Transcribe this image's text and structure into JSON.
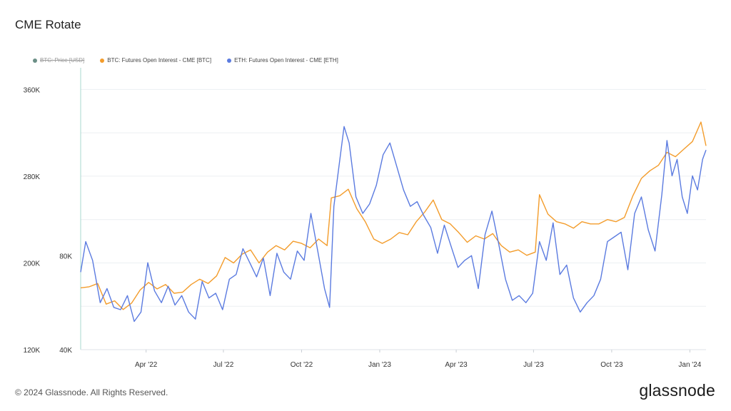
{
  "page": {
    "title": "CME Rotate",
    "footer": "© 2024 Glassnode. All Rights Reserved.",
    "brand": "glassnode"
  },
  "chart_data": {
    "type": "line",
    "legend": [
      {
        "name": "BTC: Price [USD]",
        "color": "#6b8f86",
        "hidden": true
      },
      {
        "name": "BTC: Futures Open Interest - CME [BTC]",
        "color": "#f39c2b",
        "hidden": false
      },
      {
        "name": "ETH: Futures Open Interest - CME [ETH]",
        "color": "#5b7be0",
        "hidden": false
      }
    ],
    "x_ticks": [
      {
        "date": "2022-04-01",
        "label": "Apr '22"
      },
      {
        "date": "2022-07-01",
        "label": "Jul '22"
      },
      {
        "date": "2022-10-01",
        "label": "Oct '22"
      },
      {
        "date": "2023-01-01",
        "label": "Jan '23"
      },
      {
        "date": "2023-04-01",
        "label": "Apr '23"
      },
      {
        "date": "2023-07-01",
        "label": "Jul '23"
      },
      {
        "date": "2023-10-01",
        "label": "Oct '23"
      },
      {
        "date": "2024-01-01",
        "label": "Jan '24"
      }
    ],
    "xlim": [
      "2022-01-14",
      "2024-01-20"
    ],
    "y_left": {
      "ticks": [
        120000,
        200000,
        280000,
        360000
      ],
      "labels": [
        "120K",
        "200K",
        "280K",
        "360K"
      ],
      "lim": [
        120000,
        380000
      ]
    },
    "y_right": {
      "ticks": [
        40000,
        80000
      ],
      "labels": [
        "40K",
        "80K"
      ],
      "lim": [
        40000,
        160000
      ]
    },
    "grid": true,
    "legend_position": "top-left",
    "series": [
      {
        "name": "BTC: Futures Open Interest - CME [BTC]",
        "color": "#f39c2b",
        "axis": "left",
        "points": [
          [
            "2022-01-14",
            177000
          ],
          [
            "2022-01-24",
            178000
          ],
          [
            "2022-02-03",
            181000
          ],
          [
            "2022-02-13",
            162000
          ],
          [
            "2022-02-23",
            165000
          ],
          [
            "2022-03-05",
            157000
          ],
          [
            "2022-03-15",
            163000
          ],
          [
            "2022-03-25",
            175000
          ],
          [
            "2022-04-04",
            182000
          ],
          [
            "2022-04-14",
            176000
          ],
          [
            "2022-04-24",
            180000
          ],
          [
            "2022-05-04",
            172000
          ],
          [
            "2022-05-14",
            173000
          ],
          [
            "2022-05-24",
            180000
          ],
          [
            "2022-06-03",
            185000
          ],
          [
            "2022-06-13",
            181000
          ],
          [
            "2022-06-23",
            188000
          ],
          [
            "2022-07-03",
            205000
          ],
          [
            "2022-07-13",
            200000
          ],
          [
            "2022-07-23",
            208000
          ],
          [
            "2022-08-02",
            212000
          ],
          [
            "2022-08-12",
            200000
          ],
          [
            "2022-08-22",
            210000
          ],
          [
            "2022-09-01",
            216000
          ],
          [
            "2022-09-11",
            212000
          ],
          [
            "2022-09-21",
            220000
          ],
          [
            "2022-10-01",
            218000
          ],
          [
            "2022-10-11",
            214000
          ],
          [
            "2022-10-21",
            222000
          ],
          [
            "2022-10-31",
            216000
          ],
          [
            "2022-11-05",
            260000
          ],
          [
            "2022-11-15",
            262000
          ],
          [
            "2022-11-25",
            268000
          ],
          [
            "2022-12-05",
            250000
          ],
          [
            "2022-12-15",
            238000
          ],
          [
            "2022-12-25",
            222000
          ],
          [
            "2023-01-04",
            218000
          ],
          [
            "2023-01-14",
            222000
          ],
          [
            "2023-01-24",
            228000
          ],
          [
            "2023-02-03",
            226000
          ],
          [
            "2023-02-13",
            238000
          ],
          [
            "2023-02-23",
            247000
          ],
          [
            "2023-03-05",
            258000
          ],
          [
            "2023-03-15",
            240000
          ],
          [
            "2023-03-25",
            236000
          ],
          [
            "2023-04-04",
            228000
          ],
          [
            "2023-04-14",
            219000
          ],
          [
            "2023-04-24",
            225000
          ],
          [
            "2023-05-04",
            222000
          ],
          [
            "2023-05-14",
            227000
          ],
          [
            "2023-05-24",
            216000
          ],
          [
            "2023-06-03",
            210000
          ],
          [
            "2023-06-13",
            212000
          ],
          [
            "2023-06-23",
            207000
          ],
          [
            "2023-07-03",
            210000
          ],
          [
            "2023-07-08",
            263000
          ],
          [
            "2023-07-18",
            245000
          ],
          [
            "2023-07-28",
            238000
          ],
          [
            "2023-08-07",
            236000
          ],
          [
            "2023-08-17",
            232000
          ],
          [
            "2023-08-27",
            238000
          ],
          [
            "2023-09-06",
            236000
          ],
          [
            "2023-09-16",
            236000
          ],
          [
            "2023-09-26",
            240000
          ],
          [
            "2023-10-06",
            238000
          ],
          [
            "2023-10-16",
            242000
          ],
          [
            "2023-10-26",
            262000
          ],
          [
            "2023-11-05",
            278000
          ],
          [
            "2023-11-15",
            285000
          ],
          [
            "2023-11-25",
            290000
          ],
          [
            "2023-12-05",
            302000
          ],
          [
            "2023-12-15",
            298000
          ],
          [
            "2023-12-25",
            305000
          ],
          [
            "2024-01-04",
            312000
          ],
          [
            "2024-01-14",
            330000
          ],
          [
            "2024-01-20",
            308000
          ]
        ]
      },
      {
        "name": "ETH: Futures Open Interest - CME [ETH]",
        "color": "#5b7be0",
        "axis": "right",
        "points": [
          [
            "2022-01-14",
            73000
          ],
          [
            "2022-01-20",
            86000
          ],
          [
            "2022-01-28",
            78000
          ],
          [
            "2022-02-06",
            60000
          ],
          [
            "2022-02-14",
            66000
          ],
          [
            "2022-02-22",
            58000
          ],
          [
            "2022-03-02",
            57000
          ],
          [
            "2022-03-10",
            63000
          ],
          [
            "2022-03-18",
            52000
          ],
          [
            "2022-03-26",
            56000
          ],
          [
            "2022-04-03",
            77000
          ],
          [
            "2022-04-11",
            65000
          ],
          [
            "2022-04-19",
            60000
          ],
          [
            "2022-04-27",
            67000
          ],
          [
            "2022-05-05",
            59000
          ],
          [
            "2022-05-13",
            63000
          ],
          [
            "2022-05-21",
            56000
          ],
          [
            "2022-05-29",
            53000
          ],
          [
            "2022-06-06",
            69000
          ],
          [
            "2022-06-14",
            62000
          ],
          [
            "2022-06-22",
            64000
          ],
          [
            "2022-06-30",
            57000
          ],
          [
            "2022-07-08",
            70000
          ],
          [
            "2022-07-16",
            72000
          ],
          [
            "2022-07-24",
            83000
          ],
          [
            "2022-08-01",
            77000
          ],
          [
            "2022-08-09",
            71000
          ],
          [
            "2022-08-17",
            79000
          ],
          [
            "2022-08-25",
            63000
          ],
          [
            "2022-09-02",
            81000
          ],
          [
            "2022-09-10",
            73000
          ],
          [
            "2022-09-18",
            70000
          ],
          [
            "2022-09-26",
            82000
          ],
          [
            "2022-10-04",
            78000
          ],
          [
            "2022-10-12",
            98000
          ],
          [
            "2022-10-20",
            82000
          ],
          [
            "2022-10-28",
            66000
          ],
          [
            "2022-11-03",
            58000
          ],
          [
            "2022-11-08",
            101000
          ],
          [
            "2022-11-14",
            118000
          ],
          [
            "2022-11-20",
            135000
          ],
          [
            "2022-11-26",
            128000
          ],
          [
            "2022-12-04",
            105000
          ],
          [
            "2022-12-12",
            98000
          ],
          [
            "2022-12-20",
            102000
          ],
          [
            "2022-12-28",
            110000
          ],
          [
            "2023-01-05",
            123000
          ],
          [
            "2023-01-13",
            128000
          ],
          [
            "2023-01-21",
            118000
          ],
          [
            "2023-01-29",
            108000
          ],
          [
            "2023-02-06",
            101000
          ],
          [
            "2023-02-14",
            103000
          ],
          [
            "2023-02-22",
            97000
          ],
          [
            "2023-03-02",
            92000
          ],
          [
            "2023-03-10",
            81000
          ],
          [
            "2023-03-18",
            93000
          ],
          [
            "2023-03-26",
            84000
          ],
          [
            "2023-04-03",
            75000
          ],
          [
            "2023-04-11",
            78000
          ],
          [
            "2023-04-19",
            80000
          ],
          [
            "2023-04-27",
            66000
          ],
          [
            "2023-05-05",
            89000
          ],
          [
            "2023-05-13",
            99000
          ],
          [
            "2023-05-21",
            85000
          ],
          [
            "2023-05-29",
            70000
          ],
          [
            "2023-06-06",
            61000
          ],
          [
            "2023-06-14",
            63000
          ],
          [
            "2023-06-22",
            60000
          ],
          [
            "2023-06-30",
            64000
          ],
          [
            "2023-07-08",
            86000
          ],
          [
            "2023-07-16",
            78000
          ],
          [
            "2023-07-24",
            94000
          ],
          [
            "2023-08-01",
            72000
          ],
          [
            "2023-08-09",
            76000
          ],
          [
            "2023-08-17",
            62000
          ],
          [
            "2023-08-25",
            56000
          ],
          [
            "2023-09-02",
            60000
          ],
          [
            "2023-09-10",
            63000
          ],
          [
            "2023-09-18",
            70000
          ],
          [
            "2023-09-26",
            86000
          ],
          [
            "2023-10-04",
            88000
          ],
          [
            "2023-10-12",
            90000
          ],
          [
            "2023-10-20",
            74000
          ],
          [
            "2023-10-28",
            98000
          ],
          [
            "2023-11-05",
            105000
          ],
          [
            "2023-11-13",
            91000
          ],
          [
            "2023-11-21",
            82000
          ],
          [
            "2023-11-29",
            106000
          ],
          [
            "2023-12-05",
            129000
          ],
          [
            "2023-12-11",
            114000
          ],
          [
            "2023-12-17",
            121000
          ],
          [
            "2023-12-23",
            105000
          ],
          [
            "2023-12-29",
            98000
          ],
          [
            "2024-01-04",
            114000
          ],
          [
            "2024-01-10",
            108000
          ],
          [
            "2024-01-16",
            121000
          ],
          [
            "2024-01-20",
            125000
          ]
        ]
      }
    ]
  }
}
